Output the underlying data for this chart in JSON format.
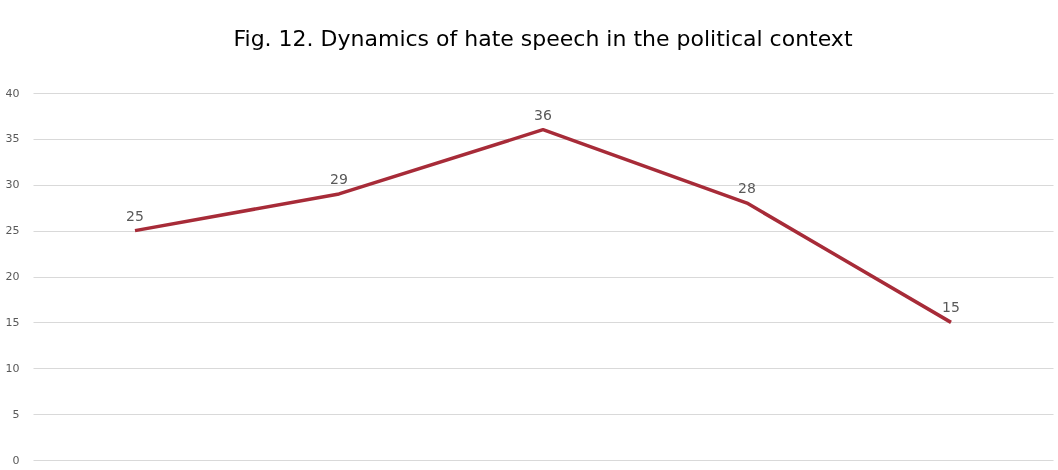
{
  "chart_data": {
    "type": "line",
    "title": "Fig. 12. Dynamics of hate speech in the political context",
    "categories": [
      null,
      null,
      null,
      null,
      null
    ],
    "series": [
      {
        "color": "#a72b38",
        "values": [
          25,
          29,
          36,
          28,
          15
        ]
      }
    ],
    "ylim": [
      0,
      40
    ],
    "yticks": [
      0,
      5,
      10,
      15,
      20,
      25,
      30,
      35,
      40
    ],
    "grid": "y",
    "data_labels": true,
    "marker": "none",
    "line_style": "solid",
    "tick_labels": "y"
  }
}
